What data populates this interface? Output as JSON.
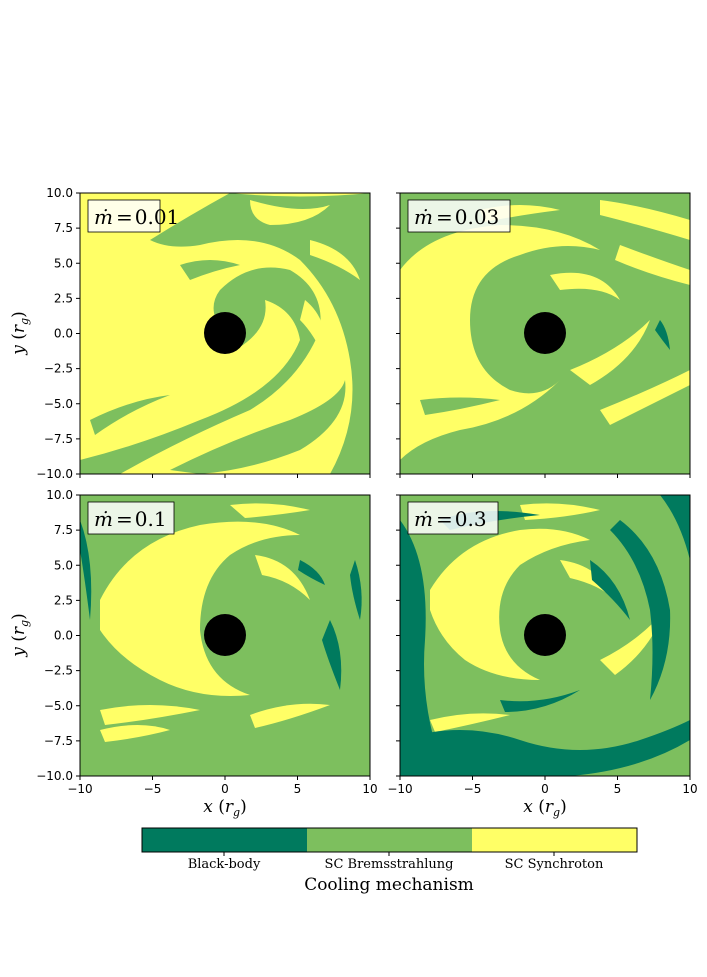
{
  "figure": {
    "colors": {
      "black_body": "#007a5e",
      "bremsstrahlung": "#7dbf5e",
      "synchrotron": "#ffff66",
      "hole": "#000000",
      "frame": "#000000"
    }
  },
  "chart_data": [
    {
      "type": "heatmap",
      "panel": "top-left",
      "label": "ṁ = 0.01",
      "label_prefix": "ṁ",
      "label_eq": "=",
      "label_value": "0.01",
      "xlim": [
        -10,
        10
      ],
      "ylim": [
        -10,
        10
      ],
      "xticks": [],
      "yticks": [
        "−10.0",
        "−7.5",
        "−5.0",
        "−2.5",
        "0.0",
        "2.5",
        "5.0",
        "7.5",
        "10.0"
      ],
      "ylabel": "y (r_g)",
      "categories": [
        "Black-body",
        "SC Bremsstrahlung",
        "SC Synchroton"
      ],
      "dominant": "SC Synchroton"
    },
    {
      "type": "heatmap",
      "panel": "top-right",
      "label": "ṁ = 0.03",
      "label_prefix": "ṁ",
      "label_eq": "=",
      "label_value": "0.03",
      "xlim": [
        -10,
        10
      ],
      "ylim": [
        -10,
        10
      ],
      "categories": [
        "Black-body",
        "SC Bremsstrahlung",
        "SC Synchroton"
      ]
    },
    {
      "type": "heatmap",
      "panel": "bottom-left",
      "label": "ṁ = 0.1",
      "label_prefix": "ṁ",
      "label_eq": "=",
      "label_value": "0.1",
      "xlim": [
        -10,
        10
      ],
      "ylim": [
        -10,
        10
      ],
      "xticks": [
        "−10",
        "−5",
        "0",
        "5",
        "10"
      ],
      "yticks": [
        "−10.0",
        "−7.5",
        "−5.0",
        "−2.5",
        "0.0",
        "2.5",
        "5.0",
        "7.5",
        "10.0"
      ],
      "xlabel": "x (r_g)",
      "ylabel": "y (r_g)",
      "categories": [
        "Black-body",
        "SC Bremsstrahlung",
        "SC Synchroton"
      ]
    },
    {
      "type": "heatmap",
      "panel": "bottom-right",
      "label": "ṁ = 0.3",
      "label_prefix": "ṁ",
      "label_eq": "=",
      "label_value": "0.3",
      "xlim": [
        -10,
        10
      ],
      "ylim": [
        -10,
        10
      ],
      "xticks": [
        "−10",
        "−5",
        "0",
        "5",
        "10"
      ],
      "xlabel": "x (r_g)",
      "categories": [
        "Black-body",
        "SC Bremsstrahlung",
        "SC Synchroton"
      ],
      "dominant": "SC Bremsstrahlung"
    }
  ],
  "axes": {
    "ylabel_var": "y",
    "xlabel_var": "x",
    "unit_main": "r",
    "unit_sub": "g",
    "left_ticks": [
      "10.0",
      "7.5",
      "5.0",
      "2.5",
      "0.0",
      "−2.5",
      "−5.0",
      "−7.5",
      "−10.0"
    ],
    "bottom_ticks_left": [
      "−10",
      "−5",
      "0",
      "5",
      "10"
    ],
    "bottom_ticks_right": [
      "−10",
      "−5",
      "0",
      "5",
      "10"
    ]
  },
  "colorbar": {
    "labels": [
      "Black-body",
      "SC Bremsstrahlung",
      "SC Synchroton"
    ],
    "title": "Cooling mechanism"
  }
}
